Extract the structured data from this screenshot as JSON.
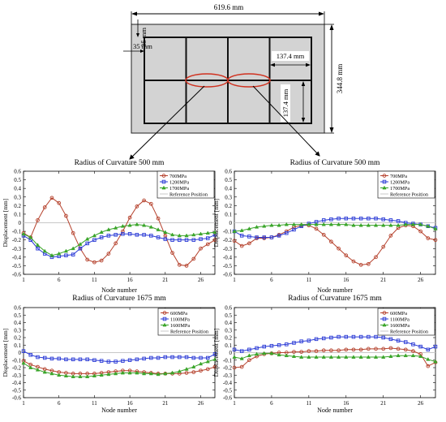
{
  "schematic": {
    "dim_width": "619.6 mm",
    "dim_height": "344.8 mm",
    "dim_cell_width": "137.4 mm",
    "dim_cell_height": "137.4 mm",
    "dim_margin_top": "35 mm",
    "dim_margin_left": "35 mm"
  },
  "chart_data": [
    {
      "type": "line",
      "title": "Radius of Curvature 500 mm",
      "xlabel": "Node number",
      "ylabel": "Displacement [mm]",
      "xlim": [
        1,
        28
      ],
      "ylim": [
        -0.6,
        0.6
      ],
      "xticks": [
        1,
        6,
        11,
        16,
        21,
        26
      ],
      "yticks": [
        -0.6,
        -0.5,
        -0.4,
        -0.3,
        -0.2,
        -0.1,
        0,
        0.1,
        0.2,
        0.3,
        0.4,
        0.5,
        0.6
      ],
      "grid": false,
      "legend": "top-right",
      "x": [
        1,
        2,
        3,
        4,
        5,
        6,
        7,
        8,
        9,
        10,
        11,
        12,
        13,
        14,
        15,
        16,
        17,
        18,
        19,
        20,
        21,
        22,
        23,
        24,
        25,
        26,
        27,
        28
      ],
      "series": [
        {
          "name": "700MPa",
          "color": "#b5412c",
          "marker": "circle",
          "values": [
            -0.12,
            -0.17,
            0.03,
            0.18,
            0.29,
            0.23,
            0.08,
            -0.12,
            -0.3,
            -0.43,
            -0.46,
            -0.44,
            -0.36,
            -0.24,
            -0.1,
            0.06,
            0.19,
            0.26,
            0.22,
            0.05,
            -0.15,
            -0.35,
            -0.49,
            -0.5,
            -0.42,
            -0.3,
            -0.25,
            -0.2
          ]
        },
        {
          "name": "1200MPa",
          "color": "#2b3bd6",
          "marker": "square",
          "values": [
            -0.15,
            -0.2,
            -0.3,
            -0.36,
            -0.4,
            -0.39,
            -0.38,
            -0.37,
            -0.3,
            -0.24,
            -0.2,
            -0.17,
            -0.15,
            -0.14,
            -0.13,
            -0.13,
            -0.14,
            -0.14,
            -0.15,
            -0.17,
            -0.19,
            -0.2,
            -0.2,
            -0.2,
            -0.2,
            -0.19,
            -0.18,
            -0.14
          ]
        },
        {
          "name": "1700MPa",
          "color": "#3aa52a",
          "marker": "triangle",
          "values": [
            -0.13,
            -0.17,
            -0.26,
            -0.33,
            -0.38,
            -0.36,
            -0.33,
            -0.3,
            -0.25,
            -0.19,
            -0.15,
            -0.11,
            -0.08,
            -0.06,
            -0.04,
            -0.03,
            -0.02,
            -0.03,
            -0.05,
            -0.08,
            -0.11,
            -0.14,
            -0.15,
            -0.15,
            -0.14,
            -0.13,
            -0.12,
            -0.11
          ]
        },
        {
          "name": "Reference Position",
          "color": "#c8c8c8",
          "marker": "none",
          "values": [
            0,
            0,
            0,
            0,
            0,
            0,
            0,
            0,
            0,
            0,
            0,
            0,
            0,
            0,
            0,
            0,
            0,
            0,
            0,
            0,
            0,
            0,
            0,
            0,
            0,
            0,
            0,
            0
          ]
        }
      ]
    },
    {
      "type": "line",
      "title": "Radius of Curvature 500 mm",
      "xlabel": "Node number",
      "ylabel": "Displacement [mm]",
      "xlim": [
        1,
        28
      ],
      "ylim": [
        -0.6,
        0.6
      ],
      "xticks": [
        1,
        6,
        11,
        16,
        21,
        26
      ],
      "yticks": [
        -0.6,
        -0.5,
        -0.4,
        -0.3,
        -0.2,
        -0.1,
        0,
        0.1,
        0.2,
        0.3,
        0.4,
        0.5,
        0.6
      ],
      "grid": false,
      "legend": "top-right",
      "x": [
        1,
        2,
        3,
        4,
        5,
        6,
        7,
        8,
        9,
        10,
        11,
        12,
        13,
        14,
        15,
        16,
        17,
        18,
        19,
        20,
        21,
        22,
        23,
        24,
        25,
        26,
        27,
        28
      ],
      "series": [
        {
          "name": "700MPa",
          "color": "#b5412c",
          "marker": "circle",
          "values": [
            -0.21,
            -0.27,
            -0.24,
            -0.18,
            -0.18,
            -0.17,
            -0.14,
            -0.1,
            -0.05,
            -0.03,
            -0.03,
            -0.07,
            -0.14,
            -0.22,
            -0.3,
            -0.38,
            -0.45,
            -0.49,
            -0.48,
            -0.4,
            -0.28,
            -0.15,
            -0.06,
            -0.03,
            -0.04,
            -0.1,
            -0.18,
            -0.2
          ]
        },
        {
          "name": "1200MPa",
          "color": "#2b3bd6",
          "marker": "square",
          "values": [
            -0.1,
            -0.15,
            -0.16,
            -0.17,
            -0.17,
            -0.17,
            -0.15,
            -0.12,
            -0.08,
            -0.04,
            -0.01,
            0.01,
            0.03,
            0.04,
            0.05,
            0.05,
            0.05,
            0.05,
            0.05,
            0.05,
            0.04,
            0.03,
            0.02,
            0.0,
            -0.01,
            -0.02,
            -0.04,
            -0.06
          ]
        },
        {
          "name": "1700MPa",
          "color": "#3aa52a",
          "marker": "triangle",
          "values": [
            -0.1,
            -0.09,
            -0.07,
            -0.05,
            -0.04,
            -0.03,
            -0.03,
            -0.02,
            -0.02,
            -0.02,
            -0.02,
            -0.02,
            -0.02,
            -0.02,
            -0.02,
            -0.02,
            -0.03,
            -0.03,
            -0.03,
            -0.03,
            -0.03,
            -0.03,
            -0.03,
            -0.02,
            -0.02,
            -0.02,
            -0.04,
            -0.07
          ]
        },
        {
          "name": "Reference Position",
          "color": "#c8c8c8",
          "marker": "none",
          "values": [
            0,
            0,
            0,
            0,
            0,
            0,
            0,
            0,
            0,
            0,
            0,
            0,
            0,
            0,
            0,
            0,
            0,
            0,
            0,
            0,
            0,
            0,
            0,
            0,
            0,
            0,
            0,
            0
          ]
        }
      ]
    },
    {
      "type": "line",
      "title": "Radius of Curvature 1675 mm",
      "xlabel": "Node number",
      "ylabel": "Displacement [mm]",
      "xlim": [
        1,
        28
      ],
      "ylim": [
        -0.6,
        0.6
      ],
      "xticks": [
        1,
        6,
        11,
        16,
        21,
        26
      ],
      "yticks": [
        -0.6,
        -0.5,
        -0.4,
        -0.3,
        -0.2,
        -0.1,
        0,
        0.1,
        0.2,
        0.3,
        0.4,
        0.5,
        0.6
      ],
      "grid": false,
      "legend": "top-right",
      "x": [
        1,
        2,
        3,
        4,
        5,
        6,
        7,
        8,
        9,
        10,
        11,
        12,
        13,
        14,
        15,
        16,
        17,
        18,
        19,
        20,
        21,
        22,
        23,
        24,
        25,
        26,
        27,
        28
      ],
      "series": [
        {
          "name": "600MPa",
          "color": "#b5412c",
          "marker": "circle",
          "values": [
            -0.11,
            -0.16,
            -0.19,
            -0.22,
            -0.24,
            -0.26,
            -0.27,
            -0.28,
            -0.28,
            -0.28,
            -0.28,
            -0.27,
            -0.26,
            -0.25,
            -0.24,
            -0.24,
            -0.25,
            -0.26,
            -0.27,
            -0.28,
            -0.28,
            -0.28,
            -0.28,
            -0.27,
            -0.26,
            -0.24,
            -0.22,
            -0.19
          ]
        },
        {
          "name": "1100MPa",
          "color": "#2b3bd6",
          "marker": "square",
          "values": [
            0.02,
            -0.03,
            -0.06,
            -0.07,
            -0.08,
            -0.08,
            -0.09,
            -0.09,
            -0.09,
            -0.09,
            -0.1,
            -0.11,
            -0.12,
            -0.12,
            -0.11,
            -0.1,
            -0.09,
            -0.08,
            -0.07,
            -0.07,
            -0.06,
            -0.06,
            -0.06,
            -0.06,
            -0.07,
            -0.07,
            -0.07,
            -0.02
          ]
        },
        {
          "name": "1600MPa",
          "color": "#3aa52a",
          "marker": "triangle",
          "values": [
            -0.14,
            -0.2,
            -0.23,
            -0.26,
            -0.28,
            -0.3,
            -0.31,
            -0.32,
            -0.32,
            -0.32,
            -0.31,
            -0.3,
            -0.29,
            -0.28,
            -0.27,
            -0.27,
            -0.27,
            -0.28,
            -0.28,
            -0.29,
            -0.28,
            -0.27,
            -0.25,
            -0.22,
            -0.19,
            -0.15,
            -0.12,
            -0.09
          ]
        },
        {
          "name": "Reference Position",
          "color": "#c8c8c8",
          "marker": "none",
          "values": [
            0,
            0,
            0,
            0,
            0,
            0,
            0,
            0,
            0,
            0,
            0,
            0,
            0,
            0,
            0,
            0,
            0,
            0,
            0,
            0,
            0,
            0,
            0,
            0,
            0,
            0,
            0,
            0
          ]
        }
      ]
    },
    {
      "type": "line",
      "title": "Radius of Curvature 1675 mm",
      "xlabel": "Node number",
      "ylabel": "Displacement [mm]",
      "xlim": [
        1,
        28
      ],
      "ylim": [
        -0.6,
        0.6
      ],
      "xticks": [
        1,
        6,
        11,
        16,
        21,
        26
      ],
      "yticks": [
        -0.6,
        -0.5,
        -0.4,
        -0.3,
        -0.2,
        -0.1,
        0,
        0.1,
        0.2,
        0.3,
        0.4,
        0.5,
        0.6
      ],
      "grid": false,
      "legend": "top-right",
      "x": [
        1,
        2,
        3,
        4,
        5,
        6,
        7,
        8,
        9,
        10,
        11,
        12,
        13,
        14,
        15,
        16,
        17,
        18,
        19,
        20,
        21,
        22,
        23,
        24,
        25,
        26,
        27,
        28
      ],
      "series": [
        {
          "name": "600MPa",
          "color": "#b5412c",
          "marker": "circle",
          "values": [
            -0.2,
            -0.19,
            -0.1,
            -0.05,
            -0.02,
            -0.01,
            0.0,
            0.0,
            0.01,
            0.01,
            0.02,
            0.02,
            0.03,
            0.03,
            0.03,
            0.04,
            0.04,
            0.04,
            0.05,
            0.05,
            0.05,
            0.06,
            0.05,
            0.04,
            0.02,
            -0.02,
            -0.18,
            -0.13
          ]
        },
        {
          "name": "1100MPa",
          "color": "#2b3bd6",
          "marker": "square",
          "values": [
            0.04,
            0.02,
            0.04,
            0.06,
            0.08,
            0.09,
            0.1,
            0.11,
            0.13,
            0.15,
            0.16,
            0.18,
            0.19,
            0.2,
            0.21,
            0.21,
            0.21,
            0.21,
            0.21,
            0.21,
            0.2,
            0.18,
            0.16,
            0.14,
            0.11,
            0.08,
            0.04,
            0.08
          ]
        },
        {
          "name": "1600MPa",
          "color": "#3aa52a",
          "marker": "triangle",
          "values": [
            -0.06,
            -0.08,
            -0.04,
            -0.02,
            -0.01,
            -0.01,
            -0.03,
            -0.04,
            -0.05,
            -0.06,
            -0.06,
            -0.06,
            -0.06,
            -0.06,
            -0.06,
            -0.06,
            -0.06,
            -0.06,
            -0.06,
            -0.06,
            -0.06,
            -0.05,
            -0.04,
            -0.04,
            -0.04,
            -0.05,
            -0.09,
            -0.12
          ]
        },
        {
          "name": "Reference Position",
          "color": "#c8c8c8",
          "marker": "none",
          "values": [
            0,
            0,
            0,
            0,
            0,
            0,
            0,
            0,
            0,
            0,
            0,
            0,
            0,
            0,
            0,
            0,
            0,
            0,
            0,
            0,
            0,
            0,
            0,
            0,
            0,
            0,
            0,
            0
          ]
        }
      ]
    }
  ]
}
